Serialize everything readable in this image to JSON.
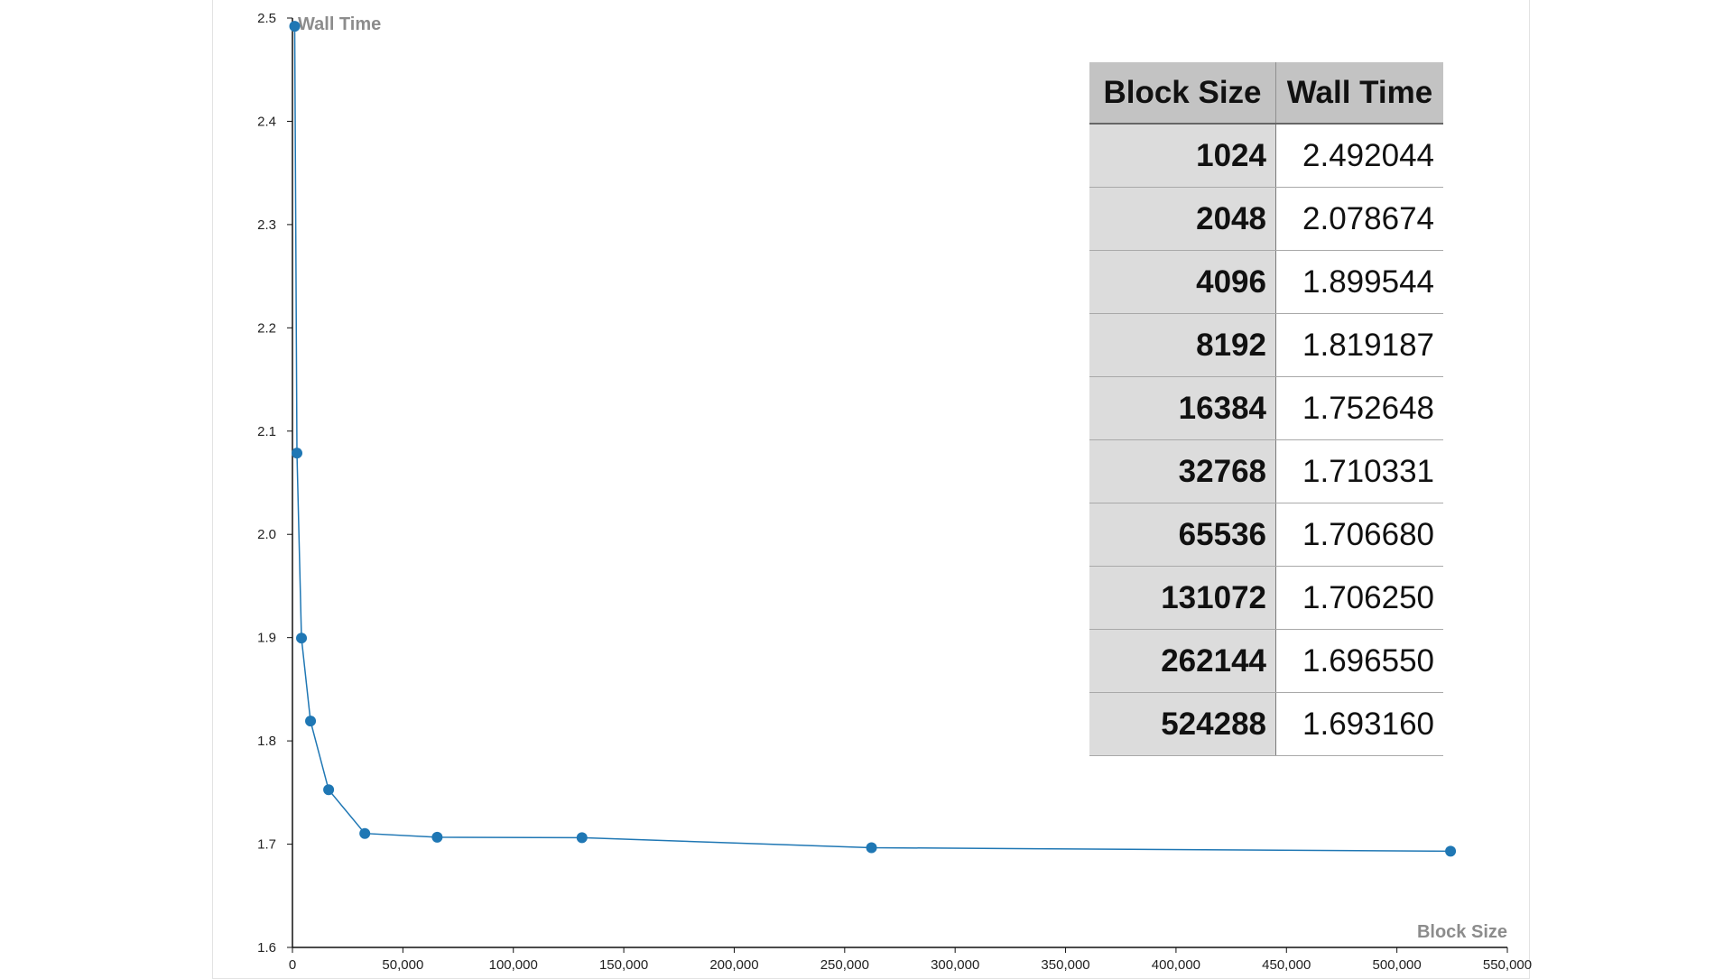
{
  "chart_data": {
    "type": "line",
    "title": "",
    "xlabel": "Block Size",
    "ylabel": "Wall Time",
    "xlim": [
      0,
      550000
    ],
    "ylim": [
      1.6,
      2.5
    ],
    "x_ticks": [
      0,
      50000,
      100000,
      150000,
      200000,
      250000,
      300000,
      350000,
      400000,
      450000,
      500000,
      550000
    ],
    "x_tick_labels": [
      "0",
      "50,000",
      "100,000",
      "150,000",
      "200,000",
      "250,000",
      "300,000",
      "350,000",
      "400,000",
      "450,000",
      "500,000",
      "550,000"
    ],
    "y_ticks": [
      1.6,
      1.7,
      1.8,
      1.9,
      2.0,
      2.1,
      2.2,
      2.3,
      2.4,
      2.5
    ],
    "y_tick_labels": [
      "1.6",
      "1.7",
      "1.8",
      "1.9",
      "2.0",
      "2.1",
      "2.2",
      "2.3",
      "2.4",
      "2.5"
    ],
    "grid": false,
    "line_color": "#1f77b4",
    "series": [
      {
        "x": [
          1024,
          2048,
          4096,
          8192,
          16384,
          32768,
          65536,
          131072,
          262144,
          524288
        ],
        "y": [
          2.492044,
          2.078674,
          1.899544,
          1.819187,
          1.752648,
          1.710331,
          1.70668,
          1.70625,
          1.69655,
          1.69316
        ]
      }
    ]
  },
  "table": {
    "headers": [
      "Block Size",
      "Wall Time"
    ],
    "rows": [
      [
        "1024",
        "2.492044"
      ],
      [
        "2048",
        "2.078674"
      ],
      [
        "4096",
        "1.899544"
      ],
      [
        "8192",
        "1.819187"
      ],
      [
        "16384",
        "1.752648"
      ],
      [
        "32768",
        "1.710331"
      ],
      [
        "65536",
        "1.706680"
      ],
      [
        "131072",
        "1.706250"
      ],
      [
        "262144",
        "1.696550"
      ],
      [
        "524288",
        "1.693160"
      ]
    ]
  }
}
